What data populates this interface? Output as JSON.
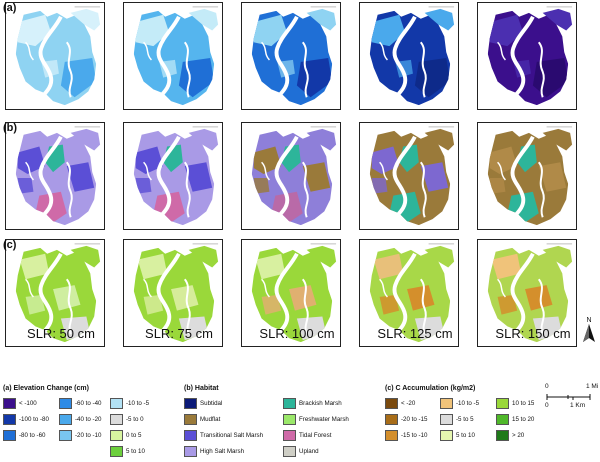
{
  "row_labels": [
    "(a)",
    "(b)",
    "(c)"
  ],
  "columns": [
    "SLR: 50 cm",
    "SLR: 75 cm",
    "SLR: 100 cm",
    "SLR: 125 cm",
    "SLR: 150 cm"
  ],
  "north_label": "N",
  "scale_bar": {
    "top_ticks": [
      "0",
      "1 Mi"
    ],
    "bottom_ticks": [
      "0",
      "1 Km"
    ]
  },
  "legend_a": {
    "title": "(a) Elevation Change (cm)",
    "items": [
      {
        "label": "< -100",
        "color": "#3b0f8c"
      },
      {
        "label": "-100 to -80",
        "color": "#1238a8"
      },
      {
        "label": "-80 to -60",
        "color": "#1f6fd6"
      },
      {
        "label": "-60 to -40",
        "color": "#2e8be6"
      },
      {
        "label": "-40 to -20",
        "color": "#4aa9ec"
      },
      {
        "label": "-20 to -10",
        "color": "#79c6f0"
      },
      {
        "label": "-10 to -5",
        "color": "#b3e2f5"
      },
      {
        "label": "-5 to 0",
        "color": "#dcdcdc"
      },
      {
        "label": "0 to 5",
        "color": "#d8f5a0"
      },
      {
        "label": "5 to 10",
        "color": "#6ccf3c"
      }
    ]
  },
  "legend_b": {
    "title": "(b) Habitat",
    "items": [
      {
        "label": "Subtidal",
        "color": "#0c1a78"
      },
      {
        "label": "Mudflat",
        "color": "#9a7a3a"
      },
      {
        "label": "Transitional Salt Marsh",
        "color": "#5b4fd6"
      },
      {
        "label": "High Salt Marsh",
        "color": "#a99ae6"
      },
      {
        "label": "Brackish Marsh",
        "color": "#2db59a"
      },
      {
        "label": "Freshwater Marsh",
        "color": "#9be86a"
      },
      {
        "label": "Tidal Forest",
        "color": "#cf6aa8"
      },
      {
        "label": "Upland",
        "color": "#cfcfc6"
      }
    ]
  },
  "legend_c": {
    "title": "(c) C Accumulation (kg/m2)",
    "items": [
      {
        "label": "< -20",
        "color": "#7a4a0e"
      },
      {
        "label": "-20 to -15",
        "color": "#a86d18"
      },
      {
        "label": "-15 to -10",
        "color": "#d48f2c"
      },
      {
        "label": "-10 to -5",
        "color": "#f0c37a"
      },
      {
        "label": "-5 to 5",
        "color": "#dcdcdc"
      },
      {
        "label": "5 to 10",
        "color": "#e6f7b0"
      },
      {
        "label": "10 to 15",
        "color": "#9ad83a"
      },
      {
        "label": "15 to 20",
        "color": "#4fb82a"
      },
      {
        "label": "> 20",
        "color": "#1f7a1a"
      }
    ]
  },
  "map_colors": {
    "a": [
      {
        "base": "#8fd3f2",
        "light": "#d6f1fb",
        "deep": "#4aa9ec"
      },
      {
        "base": "#55b5ee",
        "light": "#c4ebf8",
        "deep": "#1f6fd6"
      },
      {
        "base": "#1f6fd6",
        "light": "#8fd3f2",
        "deep": "#1238a8"
      },
      {
        "base": "#1238a8",
        "light": "#4aa9ec",
        "deep": "#0e2a8a"
      },
      {
        "base": "#3b0f8c",
        "light": "#4b2fb0",
        "deep": "#2a0a70"
      }
    ],
    "b": [
      {
        "base": "#a99ae6",
        "mid": "#5b4fd6",
        "patch": "#2db59a",
        "south": "#cf6aa8"
      },
      {
        "base": "#a99ae6",
        "mid": "#5b4fd6",
        "patch": "#2db59a",
        "south": "#cf6aa8"
      },
      {
        "base": "#8e7fd9",
        "mid": "#9a7a3a",
        "patch": "#2db59a",
        "south": "#b96aa8"
      },
      {
        "base": "#9a7a3a",
        "mid": "#7d68d0",
        "patch": "#2db59a",
        "south": "#2db59a"
      },
      {
        "base": "#9a7a3a",
        "mid": "#b08a48",
        "patch": "#2db59a",
        "south": "#2db59a"
      }
    ],
    "c": [
      {
        "base": "#9ad83a",
        "light": "#d8f0a0",
        "warm": "#cfeea0"
      },
      {
        "base": "#9ad83a",
        "light": "#d8f0a0",
        "warm": "#d6ec9a"
      },
      {
        "base": "#9ad83a",
        "light": "#d8f0a0",
        "warm": "#e0b070"
      },
      {
        "base": "#a8d848",
        "light": "#e8c07a",
        "warm": "#d48f2c"
      },
      {
        "base": "#b0d650",
        "light": "#f0c37a",
        "warm": "#d48f2c"
      }
    ]
  }
}
